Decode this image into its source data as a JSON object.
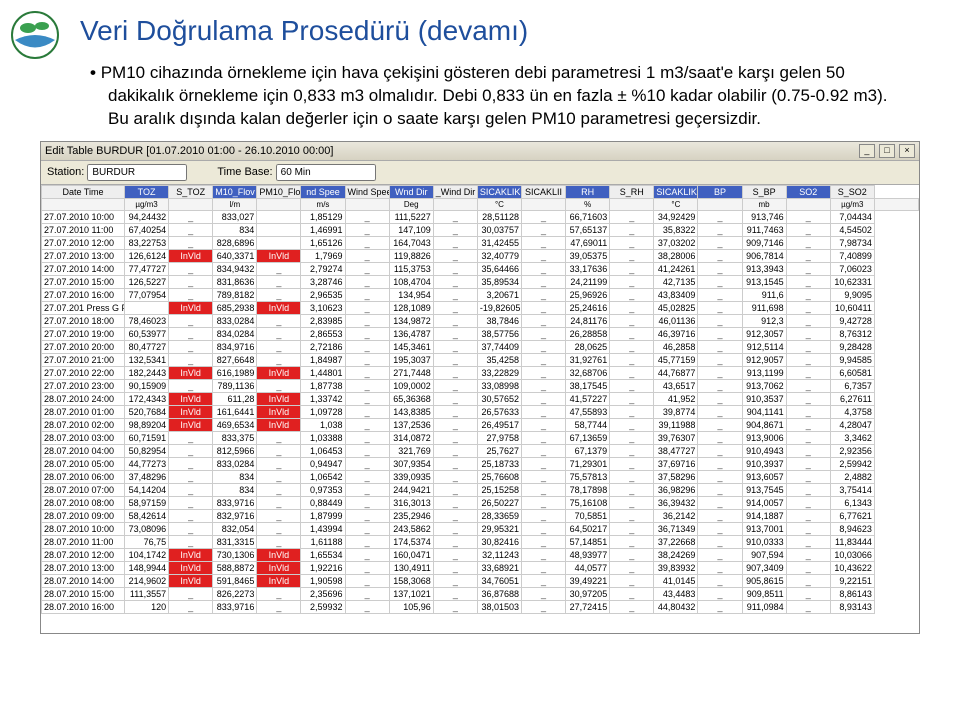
{
  "slide": {
    "title": "Veri Doğrulama Prosedürü (devamı)",
    "bullet": "PM10 cihazında örnekleme için hava çekişini gösteren debi parametresi 1 m3/saat'e karşı gelen 50 dakikalık örnekleme için 0,833 m3 olmalıdır. Debi 0,833 ün en fazla ± %10 kadar olabilir (0.75-0.92 m3). Bu aralık dışında kalan değerler için o saate karşı gelen PM10 parametresi geçersizdir."
  },
  "window": {
    "title": "Edit Table BURDUR [01.07.2010 01:00 - 26.10.2010 00:00]",
    "station_label": "Station:",
    "station_value": "BURDUR",
    "timebase_label": "Time Base:",
    "timebase_value": "60 Min"
  },
  "invalid_label": "InVld",
  "headers": {
    "row1": [
      "Date Time",
      "TOZ",
      "S_TOZ",
      "M10_Flov",
      "PM10_Flo",
      "nd Spee",
      "Wind Spee",
      "Wnd Dir",
      "_Wind Dir",
      "SICAKLIK",
      "SICAKLII",
      "RH",
      "S_RH",
      "SICAKLIK",
      "BP",
      "S_BP",
      "SO2",
      "S_SO2"
    ],
    "blue_cols": [
      1,
      3,
      5,
      7,
      9,
      11,
      13,
      14,
      16
    ],
    "row2": [
      "",
      "µg/m3",
      "",
      "l/m",
      "",
      "m/s",
      "",
      "Deg",
      "",
      "°C",
      "",
      "%",
      "",
      "°C",
      "",
      "mb",
      "",
      "µg/m3",
      ""
    ]
  },
  "rows": [
    {
      "dt": "27.07.2010 10:00",
      "toz": "94,24432",
      "stoz": "_",
      "flow": "833,027",
      "sflow": "",
      "ws": "1,85129",
      "sws": "_",
      "wd": "111,5227",
      "swd": "_",
      "t1": "28,51128",
      "st1": "_",
      "rh": "66,71603",
      "srh": "_",
      "t2": "34,92429",
      "bp": "_",
      "sbp": "913,746",
      "so2": "_",
      "sso2": "7,04434"
    },
    {
      "dt": "27.07.2010 11:00",
      "toz": "67,40254",
      "stoz": "_",
      "flow": "834",
      "sflow": "",
      "ws": "1,46991",
      "sws": "_",
      "wd": "147,109",
      "swd": "_",
      "t1": "30,03757",
      "st1": "_",
      "rh": "57,65137",
      "srh": "_",
      "t2": "35,8322",
      "bp": "_",
      "sbp": "911,7463",
      "so2": "_",
      "sso2": "4,54502"
    },
    {
      "dt": "27.07.2010 12:00",
      "toz": "83,22753",
      "stoz": "_",
      "flow": "828,6896",
      "sflow": "",
      "ws": "1,65126",
      "sws": "_",
      "wd": "164,7043",
      "swd": "_",
      "t1": "31,42455",
      "st1": "_",
      "rh": "47,69011",
      "srh": "_",
      "t2": "37,03202",
      "bp": "_",
      "sbp": "909,7146",
      "so2": "_",
      "sso2": "7,98734"
    },
    {
      "dt": "27.07.2010 13:00",
      "toz": "126,6124",
      "stoz": "InVld",
      "flow": "640,3371",
      "sflow": "InVld",
      "ws": "1,7969",
      "sws": "_",
      "wd": "119,8826",
      "swd": "_",
      "t1": "32,40779",
      "st1": "_",
      "rh": "39,05375",
      "srh": "_",
      "t2": "38,28006",
      "bp": "_",
      "sbp": "906,7814",
      "so2": "_",
      "sso2": "7,40899"
    },
    {
      "dt": "27.07.2010 14:00",
      "toz": "77,47727",
      "stoz": "_",
      "flow": "834,9432",
      "sflow": "_",
      "ws": "2,79274",
      "sws": "_",
      "wd": "115,3753",
      "swd": "_",
      "t1": "35,64466",
      "st1": "_",
      "rh": "33,17636",
      "srh": "_",
      "t2": "41,24261",
      "bp": "_",
      "sbp": "913,3943",
      "so2": "_",
      "sso2": "7,06023"
    },
    {
      "dt": "27.07.2010 15:00",
      "toz": "126,5227",
      "stoz": "_",
      "flow": "831,8636",
      "sflow": "_",
      "ws": "3,28746",
      "sws": "_",
      "wd": "108,4704",
      "swd": "_",
      "t1": "35,89534",
      "st1": "_",
      "rh": "24,21199",
      "srh": "_",
      "t2": "42,7135",
      "bp": "_",
      "sbp": "913,1545",
      "so2": "_",
      "sso2": "10,62331"
    },
    {
      "dt": "27.07.2010 16:00",
      "toz": "77,07954",
      "stoz": "_",
      "flow": "789,8182",
      "sflow": "_",
      "ws": "2,96535",
      "sws": "_",
      "wd": "134,954",
      "swd": "_",
      "t1": "3,20671",
      "st1": "_",
      "rh": "25,96926",
      "srh": "_",
      "t2": "43,83409",
      "bp": "_",
      "sbp": "911,6",
      "so2": "_",
      "sso2": "9,9095"
    },
    {
      "dt": "27.07.201 Press G For Graph",
      "toz": "",
      "stoz": "InVld",
      "flow": "685,2938",
      "sflow": "InVld",
      "ws": "3,10623",
      "sws": "_",
      "wd": "128,1089",
      "swd": "_",
      "t1": "-19,82605",
      "st1": "_",
      "rh": "25,24616",
      "srh": "_",
      "t2": "45,02825",
      "bp": "_",
      "sbp": "911,698",
      "so2": "_",
      "sso2": "10,60411"
    },
    {
      "dt": "27.07.2010 18:00",
      "toz": "78,46023",
      "stoz": "_",
      "flow": "833,0284",
      "sflow": "_",
      "ws": "2,83985",
      "sws": "_",
      "wd": "134,9872",
      "swd": "_",
      "t1": "38,7846",
      "st1": "_",
      "rh": "24,81176",
      "srh": "_",
      "t2": "46,01136",
      "bp": "_",
      "sbp": "912,3",
      "so2": "_",
      "sso2": "9,42728"
    },
    {
      "dt": "27.07.2010 19:00",
      "toz": "60,53977",
      "stoz": "_",
      "flow": "834,0284",
      "sflow": "_",
      "ws": "2,86553",
      "sws": "_",
      "wd": "136,4787",
      "swd": "_",
      "t1": "38,57756",
      "st1": "_",
      "rh": "26,28858",
      "srh": "_",
      "t2": "46,39716",
      "bp": "_",
      "sbp": "912,3057",
      "so2": "_",
      "sso2": "8,76312"
    },
    {
      "dt": "27.07.2010 20:00",
      "toz": "80,47727",
      "stoz": "_",
      "flow": "834,9716",
      "sflow": "_",
      "ws": "2,72186",
      "sws": "_",
      "wd": "145,3461",
      "swd": "_",
      "t1": "37,74409",
      "st1": "_",
      "rh": "28,0625",
      "srh": "_",
      "t2": "46,2858",
      "bp": "_",
      "sbp": "912,5114",
      "so2": "_",
      "sso2": "9,28428"
    },
    {
      "dt": "27.07.2010 21:00",
      "toz": "132,5341",
      "stoz": "_",
      "flow": "827,6648",
      "sflow": "_",
      "ws": "1,84987",
      "sws": "_",
      "wd": "195,3037",
      "swd": "_",
      "t1": "35,4258",
      "st1": "_",
      "rh": "31,92761",
      "srh": "_",
      "t2": "45,77159",
      "bp": "_",
      "sbp": "912,9057",
      "so2": "_",
      "sso2": "9,94585"
    },
    {
      "dt": "27.07.2010 22:00",
      "toz": "182,2443",
      "stoz": "InVld",
      "flow": "616,1989",
      "sflow": "InVld",
      "ws": "1,44801",
      "sws": "_",
      "wd": "271,7448",
      "swd": "_",
      "t1": "33,22829",
      "st1": "_",
      "rh": "32,68706",
      "srh": "_",
      "t2": "44,76877",
      "bp": "_",
      "sbp": "913,1199",
      "so2": "_",
      "sso2": "6,60581"
    },
    {
      "dt": "27.07.2010 23:00",
      "toz": "90,15909",
      "stoz": "_",
      "flow": "789,1136",
      "sflow": "_",
      "ws": "1,87738",
      "sws": "_",
      "wd": "109,0002",
      "swd": "_",
      "t1": "33,08998",
      "st1": "_",
      "rh": "38,17545",
      "srh": "_",
      "t2": "43,6517",
      "bp": "_",
      "sbp": "913,7062",
      "so2": "_",
      "sso2": "6,7357"
    },
    {
      "dt": "28.07.2010 24:00",
      "toz": "172,4343",
      "stoz": "InVld",
      "flow": "611,28",
      "sflow": "InVld",
      "ws": "1,33742",
      "sws": "_",
      "wd": "65,36368",
      "swd": "_",
      "t1": "30,57652",
      "st1": "_",
      "rh": "41,57227",
      "srh": "_",
      "t2": "41,952",
      "bp": "_",
      "sbp": "910,3537",
      "so2": "_",
      "sso2": "6,27611"
    },
    {
      "dt": "28.07.2010 01:00",
      "toz": "520,7684",
      "stoz": "InVld",
      "flow": "161,6441",
      "sflow": "InVld",
      "ws": "1,09728",
      "sws": "_",
      "wd": "143,8385",
      "swd": "_",
      "t1": "26,57633",
      "st1": "_",
      "rh": "47,55893",
      "srh": "_",
      "t2": "39,8774",
      "bp": "_",
      "sbp": "904,1141",
      "so2": "_",
      "sso2": "4,3758"
    },
    {
      "dt": "28.07.2010 02:00",
      "toz": "98,89204",
      "stoz": "InVld",
      "flow": "469,6534",
      "sflow": "InVld",
      "ws": "1,038",
      "sws": "_",
      "wd": "137,2536",
      "swd": "_",
      "t1": "26,49517",
      "st1": "_",
      "rh": "58,7744",
      "srh": "_",
      "t2": "39,11988",
      "bp": "_",
      "sbp": "904,8671",
      "so2": "_",
      "sso2": "4,28047"
    },
    {
      "dt": "28.07.2010 03:00",
      "toz": "60,71591",
      "stoz": "_",
      "flow": "833,375",
      "sflow": "_",
      "ws": "1,03388",
      "sws": "_",
      "wd": "314,0872",
      "swd": "_",
      "t1": "27,9758",
      "st1": "_",
      "rh": "67,13659",
      "srh": "_",
      "t2": "39,76307",
      "bp": "_",
      "sbp": "913,9006",
      "so2": "_",
      "sso2": "3,3462"
    },
    {
      "dt": "28.07.2010 04:00",
      "toz": "50,82954",
      "stoz": "_",
      "flow": "812,5966",
      "sflow": "_",
      "ws": "1,06453",
      "sws": "_",
      "wd": "321,769",
      "swd": "_",
      "t1": "25,7627",
      "st1": "_",
      "rh": "67,1379",
      "srh": "_",
      "t2": "38,47727",
      "bp": "_",
      "sbp": "910,4943",
      "so2": "_",
      "sso2": "2,92356"
    },
    {
      "dt": "28.07.2010 05:00",
      "toz": "44,77273",
      "stoz": "_",
      "flow": "833,0284",
      "sflow": "_",
      "ws": "0,94947",
      "sws": "_",
      "wd": "307,9354",
      "swd": "_",
      "t1": "25,18733",
      "st1": "_",
      "rh": "71,29301",
      "srh": "_",
      "t2": "37,69716",
      "bp": "_",
      "sbp": "910,3937",
      "so2": "_",
      "sso2": "2,59942"
    },
    {
      "dt": "28.07.2010 06:00",
      "toz": "37,48296",
      "stoz": "_",
      "flow": "834",
      "sflow": "_",
      "ws": "1,06542",
      "sws": "_",
      "wd": "339,0935",
      "swd": "_",
      "t1": "25,76608",
      "st1": "_",
      "rh": "75,57813",
      "srh": "_",
      "t2": "37,58296",
      "bp": "_",
      "sbp": "913,6057",
      "so2": "_",
      "sso2": "2,4882"
    },
    {
      "dt": "28.07.2010 07:00",
      "toz": "54,14204",
      "stoz": "_",
      "flow": "834",
      "sflow": "_",
      "ws": "0,97353",
      "sws": "_",
      "wd": "244,9421",
      "swd": "_",
      "t1": "25,15258",
      "st1": "_",
      "rh": "78,17898",
      "srh": "_",
      "t2": "36,98296",
      "bp": "_",
      "sbp": "913,7545",
      "so2": "_",
      "sso2": "3,75414"
    },
    {
      "dt": "28.07.2010 08:00",
      "toz": "58,97159",
      "stoz": "_",
      "flow": "833,9716",
      "sflow": "_",
      "ws": "0,88449",
      "sws": "_",
      "wd": "316,3013",
      "swd": "_",
      "t1": "26,50227",
      "st1": "_",
      "rh": "75,16108",
      "srh": "_",
      "t2": "36,39432",
      "bp": "_",
      "sbp": "914,0057",
      "so2": "_",
      "sso2": "6,1343"
    },
    {
      "dt": "28.07.2010 09:00",
      "toz": "58,42614",
      "stoz": "_",
      "flow": "832,9716",
      "sflow": "_",
      "ws": "1,87999",
      "sws": "_",
      "wd": "235,2946",
      "swd": "_",
      "t1": "28,33659",
      "st1": "_",
      "rh": "70,5851",
      "srh": "_",
      "t2": "36,2142",
      "bp": "_",
      "sbp": "914,1887",
      "so2": "_",
      "sso2": "6,77621"
    },
    {
      "dt": "28.07.2010 10:00",
      "toz": "73,08096",
      "stoz": "_",
      "flow": "832,054",
      "sflow": "_",
      "ws": "1,43994",
      "sws": "_",
      "wd": "243,5862",
      "swd": "_",
      "t1": "29,95321",
      "st1": "_",
      "rh": "64,50217",
      "srh": "_",
      "t2": "36,71349",
      "bp": "_",
      "sbp": "913,7001",
      "so2": "_",
      "sso2": "8,94623"
    },
    {
      "dt": "28.07.2010 11:00",
      "toz": "76,75",
      "stoz": "_",
      "flow": "831,3315",
      "sflow": "_",
      "ws": "1,61188",
      "sws": "_",
      "wd": "174,5374",
      "swd": "_",
      "t1": "30,82416",
      "st1": "_",
      "rh": "57,14851",
      "srh": "_",
      "t2": "37,22668",
      "bp": "_",
      "sbp": "910,0333",
      "so2": "_",
      "sso2": "11,83444"
    },
    {
      "dt": "28.07.2010 12:00",
      "toz": "104,1742",
      "stoz": "InVld",
      "flow": "730,1306",
      "sflow": "InVld",
      "ws": "1,65534",
      "sws": "_",
      "wd": "160,0471",
      "swd": "_",
      "t1": "32,11243",
      "st1": "_",
      "rh": "48,93977",
      "srh": "_",
      "t2": "38,24269",
      "bp": "_",
      "sbp": "907,594",
      "so2": "_",
      "sso2": "10,03066"
    },
    {
      "dt": "28.07.2010 13:00",
      "toz": "148,9944",
      "stoz": "InVld",
      "flow": "588,8872",
      "sflow": "InVld",
      "ws": "1,92216",
      "sws": "_",
      "wd": "130,4911",
      "swd": "_",
      "t1": "33,68921",
      "st1": "_",
      "rh": "44,0577",
      "srh": "_",
      "t2": "39,83932",
      "bp": "_",
      "sbp": "907,3409",
      "so2": "_",
      "sso2": "10,43622"
    },
    {
      "dt": "28.07.2010 14:00",
      "toz": "214,9602",
      "stoz": "InVld",
      "flow": "591,8465",
      "sflow": "InVld",
      "ws": "1,90598",
      "sws": "_",
      "wd": "158,3068",
      "swd": "_",
      "t1": "34,76051",
      "st1": "_",
      "rh": "39,49221",
      "srh": "_",
      "t2": "41,0145",
      "bp": "_",
      "sbp": "905,8615",
      "so2": "_",
      "sso2": "9,22151"
    },
    {
      "dt": "28.07.2010 15:00",
      "toz": "111,3557",
      "stoz": "_",
      "flow": "826,2273",
      "sflow": "_",
      "ws": "2,35696",
      "sws": "_",
      "wd": "137,1021",
      "swd": "_",
      "t1": "36,87688",
      "st1": "_",
      "rh": "30,97205",
      "srh": "_",
      "t2": "43,4483",
      "bp": "_",
      "sbp": "909,8511",
      "so2": "_",
      "sso2": "8,86143"
    },
    {
      "dt": "28.07.2010 16:00",
      "toz": "120",
      "stoz": "_",
      "flow": "833,9716",
      "sflow": "_",
      "ws": "2,59932",
      "sws": "_",
      "wd": "105,96",
      "swd": "_",
      "t1": "38,01503",
      "st1": "_",
      "rh": "27,72415",
      "srh": "_",
      "t2": "44,80432",
      "bp": "_",
      "sbp": "911,0984",
      "so2": "_",
      "sso2": "8,93143"
    }
  ]
}
